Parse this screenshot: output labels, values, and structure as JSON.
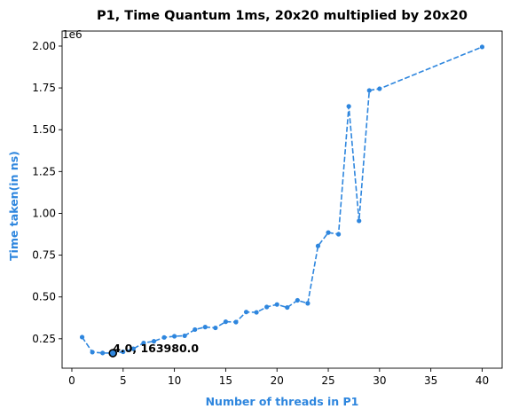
{
  "chart_data": {
    "type": "line",
    "title": "P1, Time Quantum 1ms, 20x20 multiplied by 20x20",
    "xlabel": "Number of threads in P1",
    "ylabel": "Time taken(in ns)",
    "y_offset_label": "1e6",
    "xlim": [
      -0.95,
      41.95
    ],
    "ylim": [
      74000,
      2090000
    ],
    "x_ticks": [
      0,
      5,
      10,
      15,
      20,
      25,
      30,
      35,
      40
    ],
    "x_tick_labels": [
      "0",
      "5",
      "10",
      "15",
      "20",
      "25",
      "30",
      "35",
      "40"
    ],
    "y_ticks": [
      250000,
      500000,
      750000,
      1000000,
      1250000,
      1500000,
      1750000,
      2000000
    ],
    "y_tick_labels": [
      "0.25",
      "0.50",
      "0.75",
      "1.00",
      "1.25",
      "1.50",
      "1.75",
      "2.00"
    ],
    "color": "#2e86de",
    "line_style": "dashed",
    "marker": "circle",
    "grid": false,
    "series": [
      {
        "x": [
          1,
          2,
          3,
          4,
          5,
          6,
          7,
          8,
          9,
          10,
          11,
          12,
          13,
          14,
          15,
          16,
          17,
          18,
          19,
          20,
          21,
          22,
          23,
          24,
          25,
          26,
          27,
          28,
          29,
          30,
          40
        ],
        "values": [
          260000,
          170000,
          165000,
          163980,
          172000,
          190000,
          225000,
          235000,
          258000,
          265000,
          268000,
          305000,
          320000,
          315000,
          352000,
          350000,
          410000,
          408000,
          440000,
          455000,
          437000,
          480000,
          462000,
          805000,
          885000,
          875000,
          1640000,
          955000,
          1735000,
          1745000,
          1995000
        ]
      }
    ],
    "annotation": {
      "text": "4.0, 163980.0",
      "x": 4.0,
      "y": 163980.0
    }
  }
}
